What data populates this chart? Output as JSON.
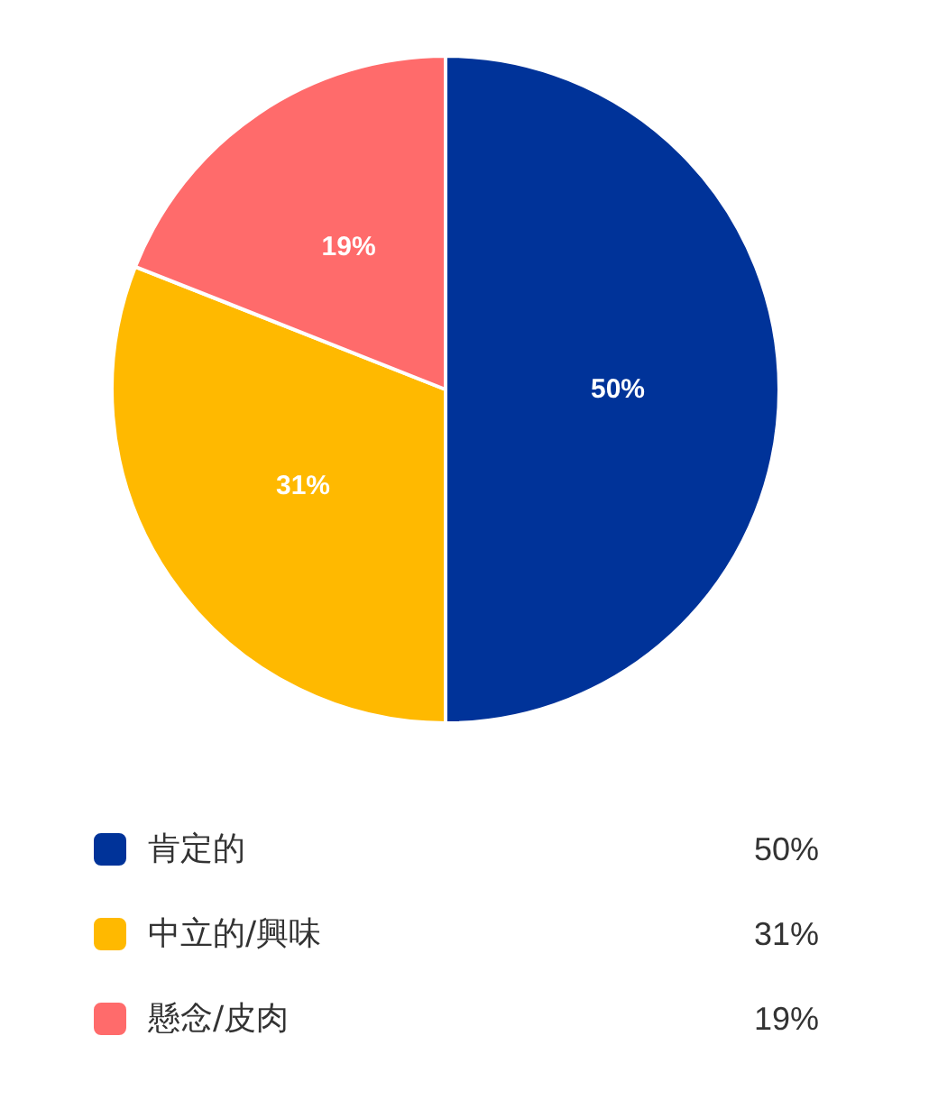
{
  "chart_data": {
    "type": "pie",
    "categories": [
      "肯定的",
      "中立的/興味",
      "懸念/皮肉"
    ],
    "values": [
      50,
      31,
      19
    ],
    "colors": [
      "#003399",
      "#ffb900",
      "#ff6b6b"
    ],
    "value_labels": [
      "50%",
      "31%",
      "19%"
    ],
    "legend": "bottom"
  }
}
